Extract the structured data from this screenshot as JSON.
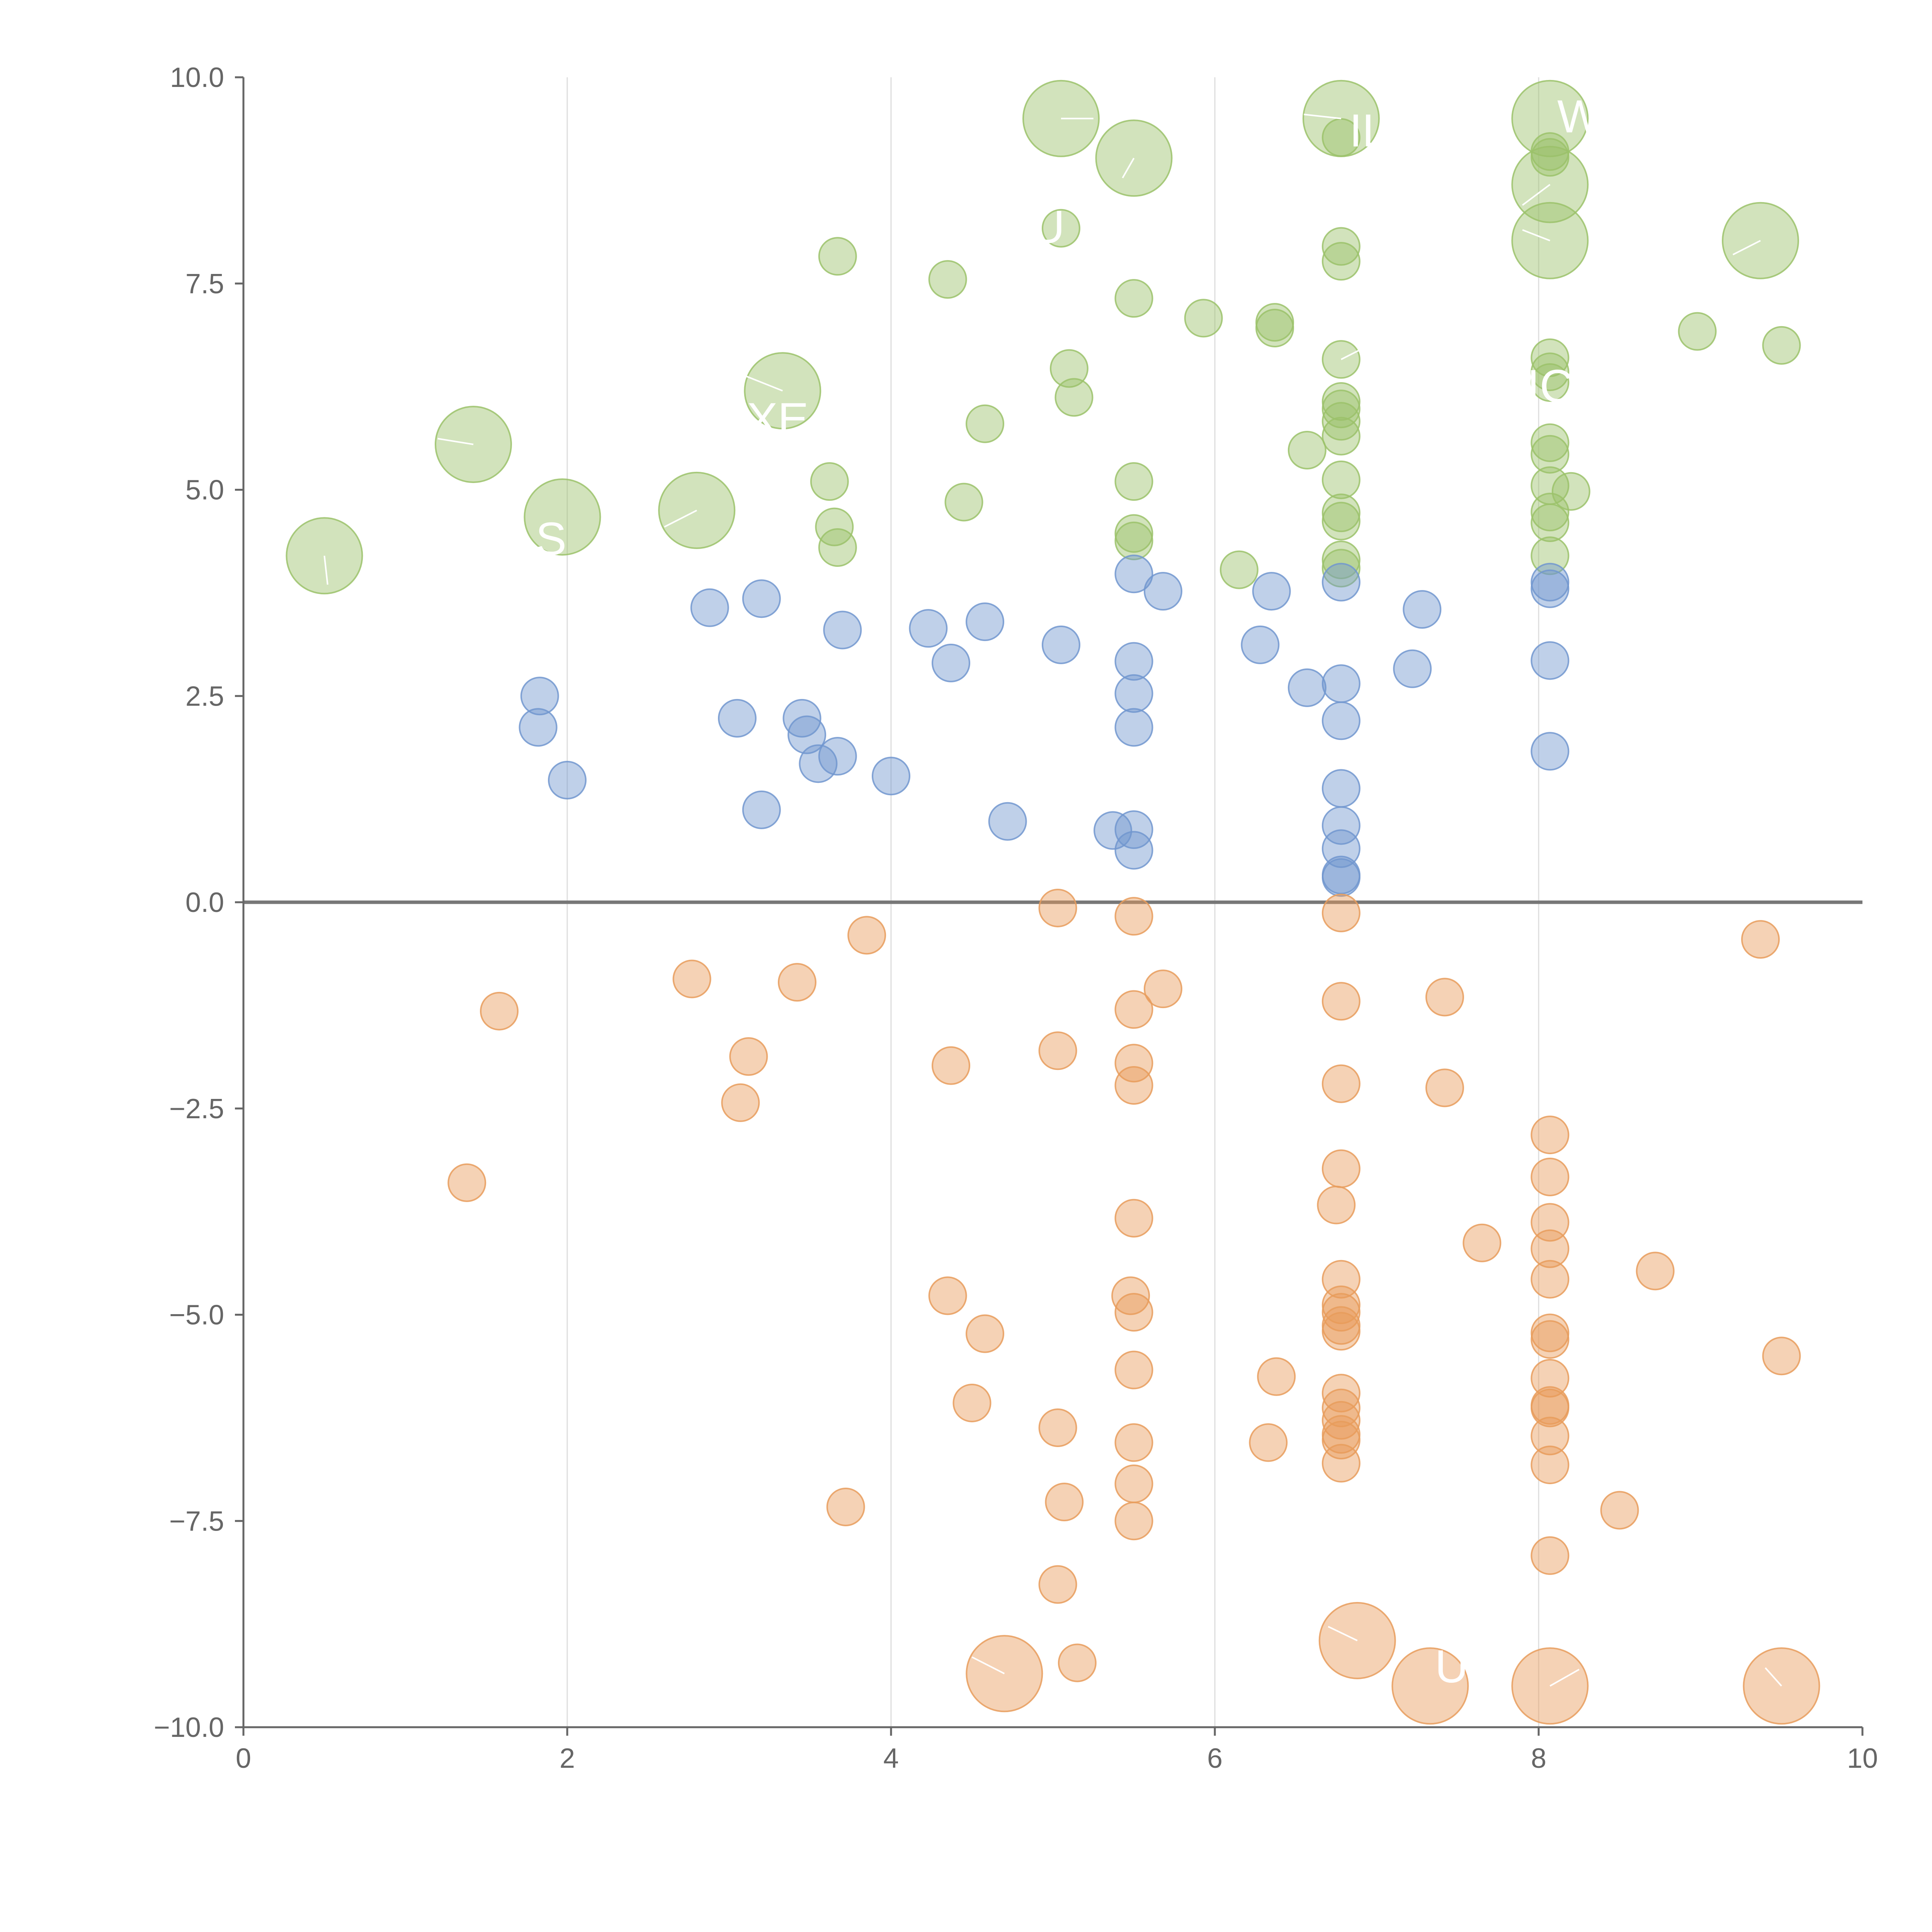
{
  "chart_data": {
    "type": "scatter",
    "xlim": [
      0,
      10
    ],
    "ylim": [
      -10,
      10
    ],
    "x_ticks": [
      "0",
      "2",
      "4",
      "6",
      "8",
      "10"
    ],
    "y_ticks": [
      "10.0",
      "7.5",
      "5.0",
      "2.5",
      "0.0",
      "−2.5",
      "−5.0",
      "−7.5",
      "−10.0"
    ],
    "grid": "vertical lines at x ticks",
    "reference_line_y": 0,
    "colors": {
      "green": "#9bc26a",
      "blue": "#7196cf",
      "orange": "#e89c5c",
      "axis": "#666666",
      "grid": "#dddddd",
      "zero_line": "#777777"
    },
    "series": [
      {
        "color": "green",
        "points": [
          {
            "x": 0.5,
            "y": 4.2,
            "s": 2
          },
          {
            "x": 1.42,
            "y": 5.55,
            "s": 2
          },
          {
            "x": 1.97,
            "y": 4.67,
            "s": 2
          },
          {
            "x": 2.8,
            "y": 4.75,
            "s": 2
          },
          {
            "x": 3.33,
            "y": 6.2,
            "s": 2
          },
          {
            "x": 5.05,
            "y": 9.5,
            "s": 2
          },
          {
            "x": 5.5,
            "y": 9.02,
            "s": 2
          },
          {
            "x": 6.78,
            "y": 9.5,
            "s": 2
          },
          {
            "x": 8.07,
            "y": 9.5,
            "s": 2
          },
          {
            "x": 8.07,
            "y": 8.7,
            "s": 2
          },
          {
            "x": 8.07,
            "y": 8.02,
            "s": 2
          },
          {
            "x": 9.37,
            "y": 8.02,
            "s": 2
          },
          {
            "x": 3.67,
            "y": 7.83,
            "s": 1
          },
          {
            "x": 4.35,
            "y": 7.55,
            "s": 1
          },
          {
            "x": 5.05,
            "y": 8.17,
            "s": 1
          },
          {
            "x": 5.5,
            "y": 7.32,
            "s": 1
          },
          {
            "x": 5.93,
            "y": 7.08,
            "s": 1
          },
          {
            "x": 6.37,
            "y": 6.96,
            "s": 1
          },
          {
            "x": 6.37,
            "y": 7.03,
            "s": 1
          },
          {
            "x": 6.78,
            "y": 9.27,
            "s": 1
          },
          {
            "x": 6.78,
            "y": 7.95,
            "s": 1
          },
          {
            "x": 6.78,
            "y": 7.77,
            "s": 1
          },
          {
            "x": 6.78,
            "y": 6.58,
            "s": 1
          },
          {
            "x": 6.78,
            "y": 6.07,
            "s": 1
          },
          {
            "x": 6.78,
            "y": 5.98,
            "s": 1
          },
          {
            "x": 6.78,
            "y": 5.83,
            "s": 1
          },
          {
            "x": 6.78,
            "y": 5.65,
            "s": 1
          },
          {
            "x": 6.78,
            "y": 5.12,
            "s": 1
          },
          {
            "x": 6.78,
            "y": 4.72,
            "s": 1
          },
          {
            "x": 6.78,
            "y": 4.62,
            "s": 1
          },
          {
            "x": 6.78,
            "y": 4.15,
            "s": 1
          },
          {
            "x": 6.78,
            "y": 4.05,
            "s": 1
          },
          {
            "x": 6.57,
            "y": 5.48,
            "s": 1
          },
          {
            "x": 6.15,
            "y": 4.03,
            "s": 1
          },
          {
            "x": 8.07,
            "y": 9.1,
            "s": 1
          },
          {
            "x": 8.07,
            "y": 9.03,
            "s": 1
          },
          {
            "x": 8.07,
            "y": 6.6,
            "s": 1
          },
          {
            "x": 8.07,
            "y": 6.43,
            "s": 1
          },
          {
            "x": 8.07,
            "y": 6.3,
            "s": 1
          },
          {
            "x": 8.07,
            "y": 5.57,
            "s": 1
          },
          {
            "x": 8.07,
            "y": 5.43,
            "s": 1
          },
          {
            "x": 8.07,
            "y": 5.05,
            "s": 1
          },
          {
            "x": 8.07,
            "y": 4.73,
            "s": 1
          },
          {
            "x": 8.07,
            "y": 4.6,
            "s": 1
          },
          {
            "x": 8.07,
            "y": 4.2,
            "s": 1
          },
          {
            "x": 8.2,
            "y": 4.98,
            "s": 1
          },
          {
            "x": 8.98,
            "y": 6.92,
            "s": 1
          },
          {
            "x": 9.5,
            "y": 6.75,
            "s": 1
          },
          {
            "x": 3.62,
            "y": 5.1,
            "s": 1
          },
          {
            "x": 3.65,
            "y": 4.55,
            "s": 1
          },
          {
            "x": 3.67,
            "y": 4.3,
            "s": 1
          },
          {
            "x": 4.45,
            "y": 4.85,
            "s": 1
          },
          {
            "x": 4.58,
            "y": 5.8,
            "s": 1
          },
          {
            "x": 5.1,
            "y": 6.47,
            "s": 1
          },
          {
            "x": 5.13,
            "y": 6.12,
            "s": 1
          },
          {
            "x": 5.5,
            "y": 5.1,
            "s": 1
          },
          {
            "x": 5.5,
            "y": 4.47,
            "s": 1
          },
          {
            "x": 5.5,
            "y": 4.38,
            "s": 1
          }
        ]
      },
      {
        "color": "blue",
        "points": [
          {
            "x": 1.83,
            "y": 2.5,
            "s": 1
          },
          {
            "x": 1.82,
            "y": 2.12,
            "s": 1
          },
          {
            "x": 2.0,
            "y": 1.48,
            "s": 1
          },
          {
            "x": 2.88,
            "y": 3.57,
            "s": 1
          },
          {
            "x": 3.2,
            "y": 3.68,
            "s": 1
          },
          {
            "x": 3.05,
            "y": 2.23,
            "s": 1
          },
          {
            "x": 3.2,
            "y": 1.12,
            "s": 1
          },
          {
            "x": 3.45,
            "y": 2.23,
            "s": 1
          },
          {
            "x": 3.48,
            "y": 2.03,
            "s": 1
          },
          {
            "x": 3.55,
            "y": 1.68,
            "s": 1
          },
          {
            "x": 3.67,
            "y": 1.77,
            "s": 1
          },
          {
            "x": 3.7,
            "y": 3.3,
            "s": 1
          },
          {
            "x": 4.0,
            "y": 1.53,
            "s": 1
          },
          {
            "x": 4.23,
            "y": 3.32,
            "s": 1
          },
          {
            "x": 4.37,
            "y": 2.9,
            "s": 1
          },
          {
            "x": 4.58,
            "y": 3.4,
            "s": 1
          },
          {
            "x": 4.72,
            "y": 0.98,
            "s": 1
          },
          {
            "x": 5.05,
            "y": 3.12,
            "s": 1
          },
          {
            "x": 5.37,
            "y": 0.87,
            "s": 1
          },
          {
            "x": 5.5,
            "y": 0.88,
            "s": 1
          },
          {
            "x": 5.5,
            "y": 0.63,
            "s": 1
          },
          {
            "x": 5.5,
            "y": 3.98,
            "s": 1
          },
          {
            "x": 5.5,
            "y": 2.92,
            "s": 1
          },
          {
            "x": 5.5,
            "y": 2.53,
            "s": 1
          },
          {
            "x": 5.5,
            "y": 2.12,
            "s": 1
          },
          {
            "x": 5.68,
            "y": 3.77,
            "s": 1
          },
          {
            "x": 6.28,
            "y": 3.12,
            "s": 1
          },
          {
            "x": 6.35,
            "y": 3.77,
            "s": 1
          },
          {
            "x": 6.57,
            "y": 2.6,
            "s": 1
          },
          {
            "x": 6.78,
            "y": 3.88,
            "s": 1
          },
          {
            "x": 6.78,
            "y": 2.65,
            "s": 1
          },
          {
            "x": 6.78,
            "y": 2.2,
            "s": 1
          },
          {
            "x": 6.78,
            "y": 1.38,
            "s": 1
          },
          {
            "x": 6.78,
            "y": 0.93,
            "s": 1
          },
          {
            "x": 6.78,
            "y": 0.65,
            "s": 1
          },
          {
            "x": 6.78,
            "y": 0.33,
            "s": 1
          },
          {
            "x": 6.78,
            "y": 0.3,
            "s": 1
          },
          {
            "x": 7.22,
            "y": 2.83,
            "s": 1
          },
          {
            "x": 7.28,
            "y": 3.55,
            "s": 1
          },
          {
            "x": 8.07,
            "y": 3.88,
            "s": 1
          },
          {
            "x": 8.07,
            "y": 3.8,
            "s": 1
          },
          {
            "x": 8.07,
            "y": 2.93,
            "s": 1
          },
          {
            "x": 8.07,
            "y": 1.83,
            "s": 1
          }
        ]
      },
      {
        "color": "orange",
        "points": [
          {
            "x": 1.38,
            "y": -3.4,
            "s": 1
          },
          {
            "x": 1.58,
            "y": -1.32,
            "s": 1
          },
          {
            "x": 2.77,
            "y": -0.93,
            "s": 1
          },
          {
            "x": 3.07,
            "y": -2.43,
            "s": 1
          },
          {
            "x": 3.12,
            "y": -1.87,
            "s": 1
          },
          {
            "x": 3.42,
            "y": -0.97,
            "s": 1
          },
          {
            "x": 3.72,
            "y": -7.33,
            "s": 1
          },
          {
            "x": 3.85,
            "y": -0.4,
            "s": 1
          },
          {
            "x": 4.35,
            "y": -4.77,
            "s": 1
          },
          {
            "x": 4.37,
            "y": -1.98,
            "s": 1
          },
          {
            "x": 4.5,
            "y": -6.07,
            "s": 1
          },
          {
            "x": 4.58,
            "y": -5.23,
            "s": 1
          },
          {
            "x": 5.03,
            "y": -0.07,
            "s": 1
          },
          {
            "x": 5.03,
            "y": -1.8,
            "s": 1
          },
          {
            "x": 5.03,
            "y": -6.37,
            "s": 1
          },
          {
            "x": 5.03,
            "y": -8.27,
            "s": 1
          },
          {
            "x": 5.07,
            "y": -7.27,
            "s": 1
          },
          {
            "x": 5.15,
            "y": -9.22,
            "s": 1
          },
          {
            "x": 5.5,
            "y": -0.17,
            "s": 1
          },
          {
            "x": 5.5,
            "y": -1.3,
            "s": 1
          },
          {
            "x": 5.5,
            "y": -1.95,
            "s": 1
          },
          {
            "x": 5.5,
            "y": -2.22,
            "s": 1
          },
          {
            "x": 5.5,
            "y": -3.83,
            "s": 1
          },
          {
            "x": 5.48,
            "y": -4.77,
            "s": 1
          },
          {
            "x": 5.5,
            "y": -4.97,
            "s": 1
          },
          {
            "x": 5.5,
            "y": -5.67,
            "s": 1
          },
          {
            "x": 5.5,
            "y": -6.55,
            "s": 1
          },
          {
            "x": 5.5,
            "y": -7.05,
            "s": 1
          },
          {
            "x": 5.5,
            "y": -7.5,
            "s": 1
          },
          {
            "x": 5.68,
            "y": -1.05,
            "s": 1
          },
          {
            "x": 6.33,
            "y": -6.55,
            "s": 1
          },
          {
            "x": 6.38,
            "y": -5.75,
            "s": 1
          },
          {
            "x": 6.78,
            "y": -0.13,
            "s": 1
          },
          {
            "x": 6.78,
            "y": -1.2,
            "s": 1
          },
          {
            "x": 6.78,
            "y": -2.2,
            "s": 1
          },
          {
            "x": 6.78,
            "y": -3.23,
            "s": 1
          },
          {
            "x": 6.75,
            "y": -3.67,
            "s": 1
          },
          {
            "x": 6.78,
            "y": -4.57,
            "s": 1
          },
          {
            "x": 6.78,
            "y": -4.88,
            "s": 1
          },
          {
            "x": 6.78,
            "y": -4.97,
            "s": 1
          },
          {
            "x": 6.78,
            "y": -5.13,
            "s": 1
          },
          {
            "x": 6.78,
            "y": -5.2,
            "s": 1
          },
          {
            "x": 6.78,
            "y": -5.95,
            "s": 1
          },
          {
            "x": 6.78,
            "y": -6.13,
            "s": 1
          },
          {
            "x": 6.78,
            "y": -6.28,
            "s": 1
          },
          {
            "x": 6.78,
            "y": -6.45,
            "s": 1
          },
          {
            "x": 6.78,
            "y": -6.52,
            "s": 1
          },
          {
            "x": 6.78,
            "y": -6.8,
            "s": 1
          },
          {
            "x": 7.42,
            "y": -1.15,
            "s": 1
          },
          {
            "x": 7.42,
            "y": -2.25,
            "s": 1
          },
          {
            "x": 7.65,
            "y": -4.13,
            "s": 1
          },
          {
            "x": 8.07,
            "y": -2.82,
            "s": 1
          },
          {
            "x": 8.07,
            "y": -3.33,
            "s": 1
          },
          {
            "x": 8.07,
            "y": -3.88,
            "s": 1
          },
          {
            "x": 8.07,
            "y": -4.2,
            "s": 1
          },
          {
            "x": 8.07,
            "y": -4.57,
            "s": 1
          },
          {
            "x": 8.07,
            "y": -5.22,
            "s": 1
          },
          {
            "x": 8.07,
            "y": -5.3,
            "s": 1
          },
          {
            "x": 8.07,
            "y": -5.77,
            "s": 1
          },
          {
            "x": 8.07,
            "y": -6.1,
            "s": 1
          },
          {
            "x": 8.07,
            "y": -6.13,
            "s": 1
          },
          {
            "x": 8.07,
            "y": -6.47,
            "s": 1
          },
          {
            "x": 8.07,
            "y": -6.82,
            "s": 1
          },
          {
            "x": 8.07,
            "y": -7.92,
            "s": 1
          },
          {
            "x": 8.5,
            "y": -7.37,
            "s": 1
          },
          {
            "x": 8.72,
            "y": -4.47,
            "s": 1
          },
          {
            "x": 9.37,
            "y": -0.45,
            "s": 1
          },
          {
            "x": 9.5,
            "y": -5.5,
            "s": 1
          },
          {
            "x": 4.7,
            "y": -9.35,
            "s": 2
          },
          {
            "x": 6.88,
            "y": -8.95,
            "s": 2
          },
          {
            "x": 7.33,
            "y": -9.5,
            "s": 2
          },
          {
            "x": 8.07,
            "y": -9.5,
            "s": 2
          },
          {
            "x": 9.5,
            "y": -9.5,
            "s": 2
          }
        ]
      }
    ],
    "bubble_labels": [
      {
        "text": "S",
        "x": 1.9,
        "y": 4.4
      },
      {
        "text": "XE",
        "x": 3.3,
        "y": 5.85
      },
      {
        "text": "U",
        "x": 4.97,
        "y": 8.18
      },
      {
        "text": "IL",
        "x": 6.95,
        "y": 9.35
      },
      {
        "text": "W",
        "x": 8.25,
        "y": 9.52
      },
      {
        "text": "IC",
        "x": 8.07,
        "y": 6.25
      },
      {
        "text": "UF",
        "x": 7.55,
        "y": -9.27
      }
    ],
    "leader_lines": [
      {
        "x1": 0.5,
        "y1": 4.2,
        "x2": 0.52,
        "y2": 3.85
      },
      {
        "x1": 1.42,
        "y1": 5.55,
        "x2": 1.2,
        "y2": 5.62
      },
      {
        "x1": 2.8,
        "y1": 4.75,
        "x2": 2.6,
        "y2": 4.55
      },
      {
        "x1": 3.33,
        "y1": 6.2,
        "x2": 3.1,
        "y2": 6.38
      },
      {
        "x1": 5.05,
        "y1": 9.5,
        "x2": 5.25,
        "y2": 9.5
      },
      {
        "x1": 5.5,
        "y1": 9.02,
        "x2": 5.43,
        "y2": 8.78
      },
      {
        "x1": 6.78,
        "y1": 9.5,
        "x2": 6.55,
        "y2": 9.55
      },
      {
        "x1": 8.07,
        "y1": 8.7,
        "x2": 7.9,
        "y2": 8.45
      },
      {
        "x1": 8.07,
        "y1": 8.02,
        "x2": 7.9,
        "y2": 8.15
      },
      {
        "x1": 9.37,
        "y1": 8.02,
        "x2": 9.2,
        "y2": 7.85
      },
      {
        "x1": 6.78,
        "y1": 6.58,
        "x2": 6.95,
        "y2": 6.75
      },
      {
        "x1": 4.7,
        "y1": -9.35,
        "x2": 4.5,
        "y2": -9.15
      },
      {
        "x1": 6.88,
        "y1": -8.95,
        "x2": 6.7,
        "y2": -8.78
      },
      {
        "x1": 8.07,
        "y1": -9.5,
        "x2": 8.25,
        "y2": -9.3
      },
      {
        "x1": 9.5,
        "y1": -9.5,
        "x2": 9.4,
        "y2": -9.28
      }
    ]
  }
}
